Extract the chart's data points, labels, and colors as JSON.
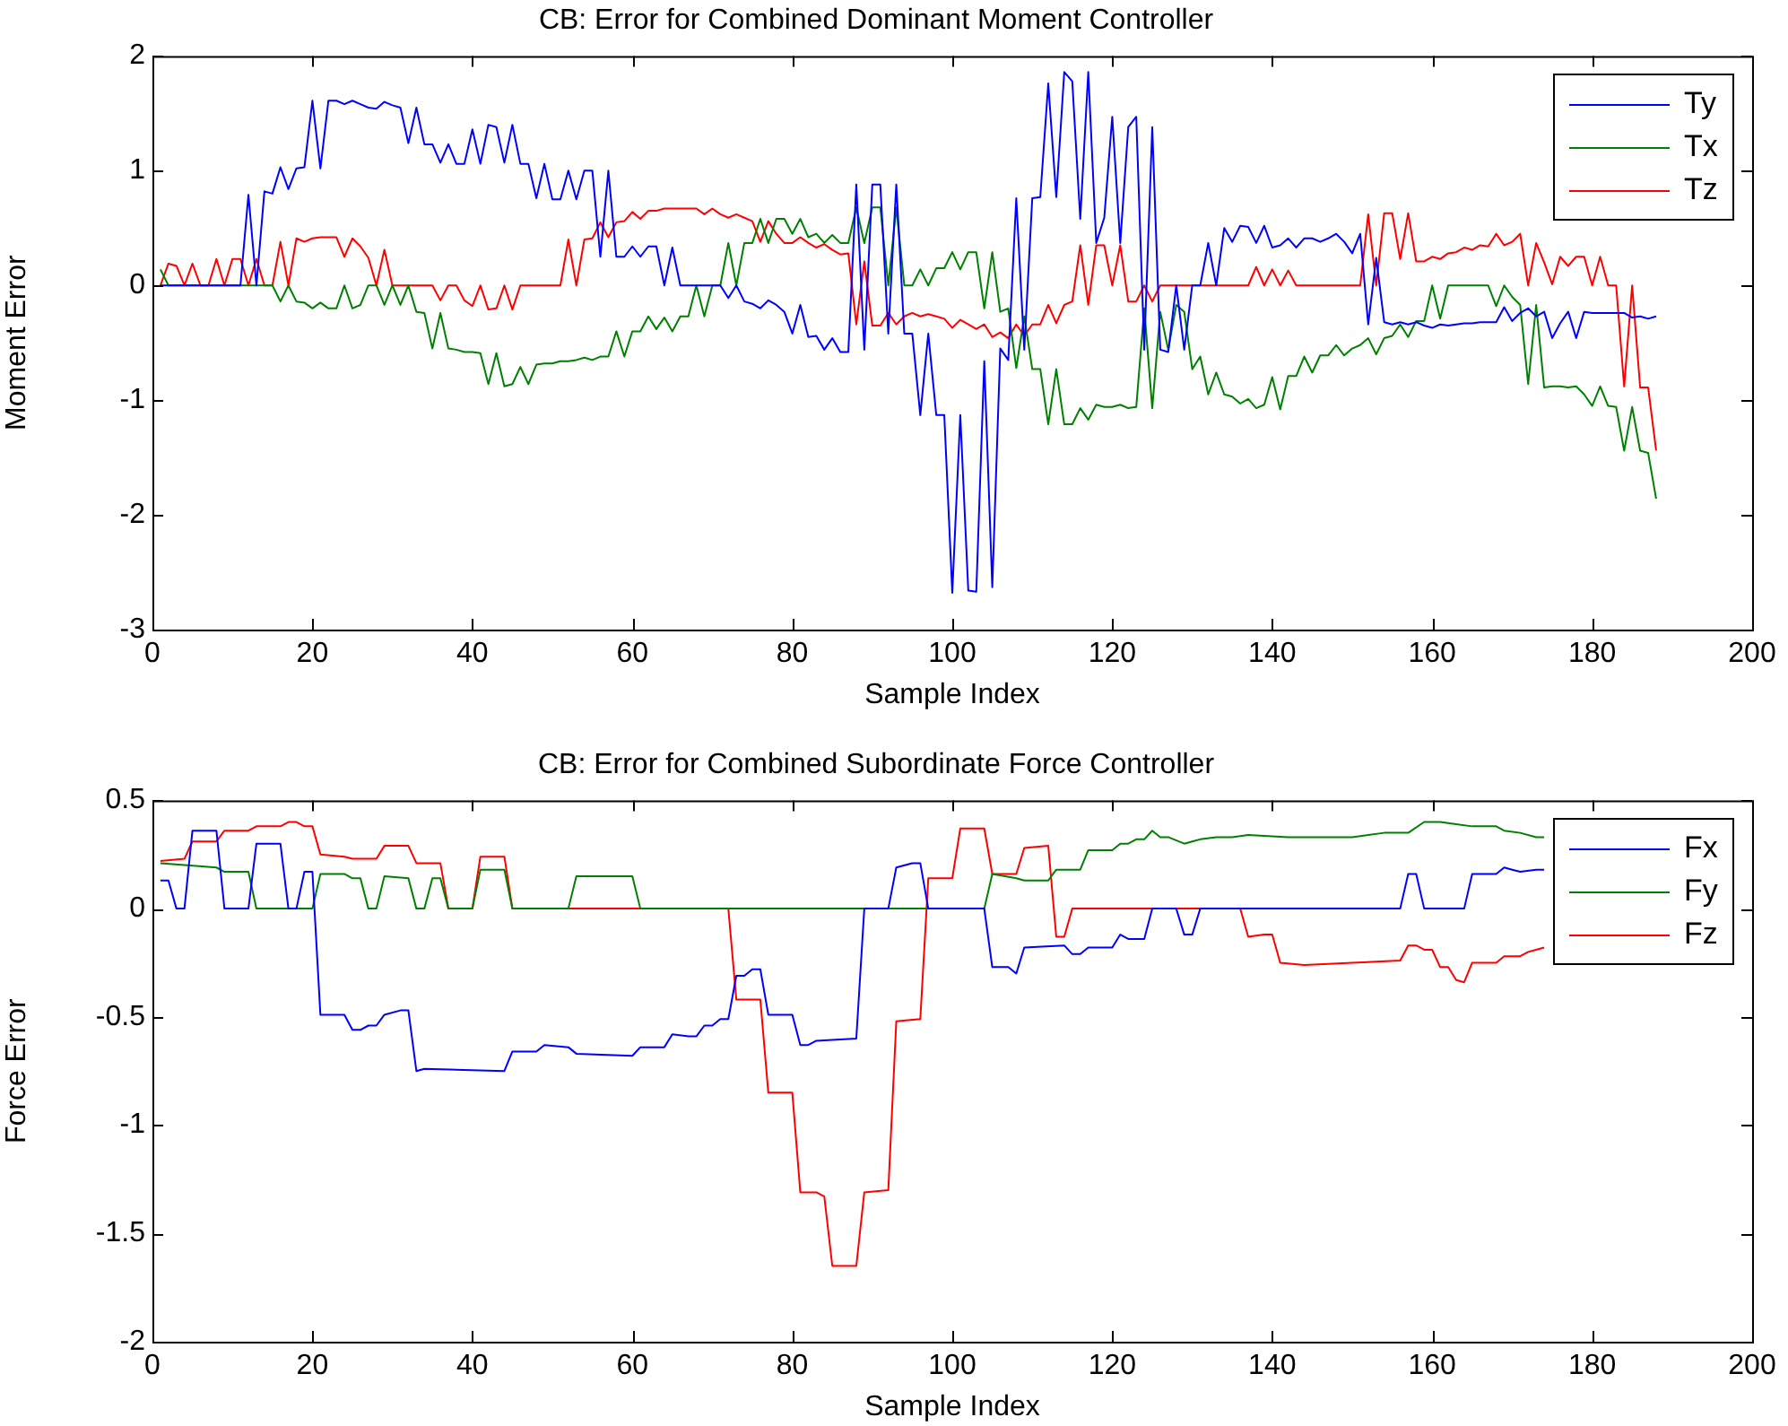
{
  "chart_data": [
    {
      "type": "line",
      "title": "CB: Error for Combined Dominant Moment Controller",
      "xlabel": "Sample Index",
      "ylabel": "Moment Error",
      "xlim": [
        0,
        200
      ],
      "xticks": [
        0,
        20,
        40,
        60,
        80,
        100,
        120,
        140,
        160,
        180,
        200
      ],
      "ylim": [
        -3,
        2
      ],
      "yticks": [
        -3,
        -2,
        -1,
        0,
        1,
        2
      ],
      "grid": false,
      "legend": "top right",
      "x": [
        1,
        2,
        3,
        4,
        5,
        6,
        7,
        8,
        9,
        10,
        11,
        12,
        13,
        14,
        15,
        16,
        17,
        18,
        19,
        20,
        21,
        22,
        23,
        24,
        25,
        26,
        27,
        28,
        29,
        30,
        31,
        32,
        33,
        34,
        35,
        36,
        37,
        38,
        39,
        40,
        41,
        42,
        43,
        44,
        45,
        46,
        47,
        48,
        49,
        50,
        51,
        52,
        53,
        54,
        55,
        56,
        57,
        58,
        59,
        60,
        61,
        62,
        63,
        64,
        65,
        66,
        67,
        68,
        69,
        70,
        71,
        72,
        73,
        74,
        75,
        76,
        77,
        78,
        79,
        80,
        81,
        82,
        83,
        84,
        85,
        86,
        87,
        88,
        89,
        90,
        91,
        92,
        93,
        94,
        95,
        96,
        97,
        98,
        99,
        100,
        101,
        102,
        103,
        104,
        105,
        106,
        107,
        108,
        109,
        110,
        111,
        112,
        113,
        114,
        115,
        116,
        117,
        118,
        119,
        120,
        121,
        122,
        123,
        124,
        125,
        126,
        127,
        128,
        129,
        130,
        131,
        132,
        133,
        134,
        135,
        136,
        137,
        138,
        139,
        140,
        141,
        142,
        143,
        144,
        145,
        146,
        147,
        148,
        149,
        150,
        151,
        152,
        153,
        154,
        155,
        156,
        157,
        158,
        159,
        160,
        161,
        162,
        163,
        164,
        165,
        166,
        167,
        168,
        169,
        170,
        171,
        172,
        173,
        174,
        175,
        176,
        177,
        178,
        179,
        180,
        181,
        182,
        183,
        184,
        185,
        186,
        187,
        188
      ],
      "series": [
        {
          "name": "Ty",
          "color": "#0000ff",
          "values": [
            0,
            0,
            0,
            0,
            0,
            0,
            0,
            0,
            0,
            0,
            0,
            0.79,
            0,
            0.82,
            0.8,
            1.03,
            0.84,
            1.02,
            1.03,
            1.61,
            1.02,
            1.61,
            1.61,
            1.58,
            1.61,
            1.58,
            1.55,
            1.54,
            1.6,
            1.57,
            1.55,
            1.24,
            1.55,
            1.23,
            1.23,
            1.07,
            1.23,
            1.06,
            1.06,
            1.36,
            1.06,
            1.4,
            1.38,
            1.07,
            1.4,
            1.06,
            1.06,
            0.76,
            1.06,
            0.75,
            0.75,
            1,
            0.75,
            1,
            1,
            0.25,
            1,
            0.25,
            0.25,
            0.34,
            0.25,
            0.34,
            0.34,
            0,
            0.33,
            0,
            0,
            0,
            0,
            0,
            0,
            -0.11,
            0,
            -0.14,
            -0.16,
            -0.2,
            -0.13,
            -0.17,
            -0.23,
            -0.42,
            -0.17,
            -0.45,
            -0.44,
            -0.56,
            -0.46,
            -0.58,
            -0.58,
            0.88,
            -0.56,
            0.88,
            0.88,
            -0.42,
            0.88,
            -0.42,
            -0.42,
            -1.13,
            -0.42,
            -1.13,
            -1.13,
            -2.68,
            -1.13,
            -2.66,
            -2.67,
            -0.66,
            -2.63,
            -0.55,
            -0.65,
            0.76,
            -0.56,
            0.76,
            0.77,
            1.76,
            0.77,
            1.86,
            1.78,
            0.58,
            1.86,
            0.37,
            0.59,
            1.47,
            0.37,
            1.38,
            1.47,
            -0.56,
            1.38,
            -0.56,
            -0.58,
            0,
            -0.56,
            0,
            0,
            0.37,
            0,
            0.5,
            0.38,
            0.52,
            0.51,
            0.37,
            0.52,
            0.33,
            0.35,
            0.41,
            0.33,
            0.41,
            0.41,
            0.38,
            0.41,
            0.45,
            0.38,
            0.28,
            0.45,
            -0.34,
            0.24,
            -0.32,
            -0.34,
            -0.32,
            -0.34,
            -0.32,
            -0.35,
            -0.37,
            -0.34,
            -0.35,
            -0.34,
            -0.33,
            -0.33,
            -0.32,
            -0.32,
            -0.32,
            -0.19,
            -0.31,
            -0.24,
            -0.2,
            -0.27,
            -0.23,
            -0.46,
            -0.33,
            -0.23,
            -0.46,
            -0.23,
            -0.24,
            -0.24,
            -0.24,
            -0.24,
            -0.24,
            -0.28,
            -0.27,
            -0.29,
            -0.27
          ]
        },
        {
          "name": "Tx",
          "color": "#008000",
          "values": [
            0.14,
            0,
            0,
            0,
            0,
            0,
            0,
            0,
            0,
            0,
            0,
            0,
            0,
            0,
            0,
            -0.14,
            0,
            -0.14,
            -0.15,
            -0.2,
            -0.15,
            -0.2,
            -0.2,
            0,
            -0.2,
            -0.17,
            0,
            0,
            -0.17,
            0,
            -0.17,
            0,
            -0.23,
            -0.24,
            -0.55,
            -0.24,
            -0.55,
            -0.56,
            -0.58,
            -0.58,
            -0.59,
            -0.86,
            -0.59,
            -0.88,
            -0.86,
            -0.71,
            -0.86,
            -0.69,
            -0.68,
            -0.68,
            -0.66,
            -0.66,
            -0.65,
            -0.63,
            -0.65,
            -0.62,
            -0.62,
            -0.4,
            -0.62,
            -0.4,
            -0.4,
            -0.27,
            -0.38,
            -0.28,
            -0.4,
            -0.27,
            -0.27,
            0,
            -0.27,
            0,
            0,
            0.37,
            0,
            0.37,
            0.37,
            0.58,
            0.37,
            0.58,
            0.58,
            0.45,
            0.58,
            0.42,
            0.45,
            0.37,
            0.44,
            0.37,
            0.37,
            0.68,
            0.37,
            0.68,
            0.68,
            0,
            0.68,
            0,
            0,
            0.14,
            0,
            0.15,
            0.15,
            0.29,
            0.14,
            0.29,
            0.29,
            -0.2,
            0.29,
            -0.23,
            -0.2,
            -0.72,
            -0.27,
            -0.73,
            -0.73,
            -1.21,
            -0.73,
            -1.21,
            -1.21,
            -1.07,
            -1.17,
            -1.04,
            -1.06,
            -1.06,
            -1.04,
            -1.07,
            -1.06,
            -0.2,
            -1.07,
            -0.23,
            -0.56,
            -0.17,
            -0.23,
            -0.73,
            -0.62,
            -0.95,
            -0.76,
            -0.95,
            -0.97,
            -1.03,
            -0.99,
            -1.07,
            -1.04,
            -0.8,
            -1.08,
            -0.79,
            -0.79,
            -0.62,
            -0.76,
            -0.61,
            -0.61,
            -0.52,
            -0.61,
            -0.55,
            -0.52,
            -0.46,
            -0.6,
            -0.46,
            -0.44,
            -0.34,
            -0.45,
            -0.31,
            -0.31,
            0,
            -0.29,
            0,
            0,
            0,
            0,
            0,
            0,
            -0.18,
            0,
            -0.1,
            -0.17,
            -0.86,
            -0.17,
            -0.89,
            -0.88,
            -0.88,
            -0.89,
            -0.88,
            -0.95,
            -1.05,
            -0.88,
            -1.05,
            -1.06,
            -1.44,
            -1.06,
            -1.44,
            -1.46,
            -1.86
          ]
        },
        {
          "name": "Tz",
          "color": "#ff0000",
          "values": [
            0,
            0.19,
            0.17,
            0,
            0.19,
            0,
            0,
            0.23,
            0,
            0.23,
            0.23,
            0,
            0.23,
            0,
            0,
            0.38,
            0,
            0.41,
            0.38,
            0.41,
            0.42,
            0.42,
            0.42,
            0.25,
            0.41,
            0.34,
            0.24,
            0,
            0.31,
            0,
            0,
            0,
            0,
            0,
            0,
            -0.13,
            0,
            0,
            -0.13,
            -0.18,
            0,
            -0.21,
            -0.2,
            0,
            -0.21,
            0,
            0,
            0,
            0,
            0,
            0,
            0.4,
            0,
            0.4,
            0.41,
            0.55,
            0.42,
            0.55,
            0.56,
            0.64,
            0.58,
            0.65,
            0.65,
            0.67,
            0.67,
            0.67,
            0.67,
            0.67,
            0.62,
            0.67,
            0.62,
            0.59,
            0.62,
            0.59,
            0.56,
            0.38,
            0.56,
            0.45,
            0.37,
            0.37,
            0.42,
            0.37,
            0.33,
            0.36,
            0.31,
            0.27,
            0.28,
            -0.34,
            0.21,
            -0.35,
            -0.35,
            -0.24,
            -0.34,
            -0.27,
            -0.24,
            -0.27,
            -0.25,
            -0.27,
            -0.29,
            -0.37,
            -0.3,
            -0.34,
            -0.38,
            -0.34,
            -0.45,
            -0.41,
            -0.46,
            -0.34,
            -0.44,
            -0.34,
            -0.34,
            -0.17,
            -0.33,
            -0.17,
            -0.14,
            0.35,
            -0.17,
            0.35,
            0.35,
            0,
            0.35,
            -0.14,
            -0.14,
            0,
            -0.14,
            0,
            0,
            0,
            0,
            0,
            0,
            0,
            0,
            0,
            0,
            0,
            0,
            0.16,
            0,
            0.14,
            0,
            0.13,
            0,
            0,
            0,
            0,
            0,
            0,
            0,
            0,
            0,
            0.62,
            0,
            0.63,
            0.63,
            0.23,
            0.63,
            0.21,
            0.21,
            0.25,
            0.23,
            0.28,
            0.29,
            0.33,
            0.31,
            0.35,
            0.34,
            0.45,
            0.35,
            0.38,
            0.45,
            0,
            0.37,
            0.2,
            0.01,
            0.25,
            0.17,
            0.25,
            0.25,
            0,
            0.25,
            0,
            0,
            -0.88,
            0,
            -0.89,
            -0.89,
            -1.44
          ]
        }
      ]
    },
    {
      "type": "line",
      "title": "CB: Error for Combined Subordinate Force Controller",
      "xlabel": "Sample Index",
      "ylabel": "Force Error",
      "xlim": [
        0,
        200
      ],
      "xticks": [
        0,
        20,
        40,
        60,
        80,
        100,
        120,
        140,
        160,
        180,
        200
      ],
      "ylim": [
        -2,
        0.5
      ],
      "yticks": [
        -2,
        -1.5,
        -1,
        -0.5,
        0,
        0.5
      ],
      "grid": false,
      "legend": "top right",
      "series": [
        {
          "name": "Fx",
          "color": "#0000ff",
          "x": [
            1,
            2,
            3,
            4,
            5,
            8,
            9,
            12,
            13,
            16,
            17,
            18,
            19,
            20,
            21,
            24,
            25,
            26,
            27,
            28,
            29,
            31,
            32,
            33,
            34,
            44,
            45,
            48,
            49,
            52,
            53,
            60,
            61,
            64,
            65,
            67,
            68,
            69,
            70,
            71,
            72,
            73,
            74,
            75,
            76,
            77,
            80,
            81,
            82,
            83,
            88,
            89,
            92,
            93,
            95,
            96,
            97,
            104,
            105,
            107,
            108,
            109,
            114,
            115,
            116,
            117,
            120,
            121,
            122,
            124,
            125,
            128,
            129,
            130,
            131,
            156,
            157,
            158,
            159,
            164,
            165,
            168,
            169,
            170,
            171,
            173,
            174
          ],
          "values": [
            0.13,
            0.13,
            0,
            0,
            0.36,
            0.36,
            0,
            0,
            0.3,
            0.3,
            0,
            0,
            0.17,
            0.17,
            -0.49,
            -0.49,
            -0.56,
            -0.56,
            -0.54,
            -0.54,
            -0.49,
            -0.47,
            -0.47,
            -0.75,
            -0.74,
            -0.75,
            -0.66,
            -0.66,
            -0.63,
            -0.64,
            -0.67,
            -0.68,
            -0.64,
            -0.64,
            -0.58,
            -0.59,
            -0.59,
            -0.54,
            -0.54,
            -0.51,
            -0.51,
            -0.31,
            -0.31,
            -0.28,
            -0.28,
            -0.49,
            -0.49,
            -0.63,
            -0.63,
            -0.61,
            -0.6,
            0,
            0,
            0.19,
            0.21,
            0.21,
            0,
            0,
            -0.27,
            -0.27,
            -0.3,
            -0.18,
            -0.17,
            -0.21,
            -0.21,
            -0.18,
            -0.18,
            -0.12,
            -0.14,
            -0.14,
            0,
            0,
            -0.12,
            -0.12,
            0,
            0,
            0.16,
            0.16,
            0,
            0,
            0.16,
            0.16,
            0.19,
            0.18,
            0.17,
            0.18,
            0.18
          ]
        },
        {
          "name": "Fy",
          "color": "#008000",
          "x": [
            1,
            8,
            9,
            12,
            13,
            20,
            21,
            24,
            25,
            26,
            27,
            28,
            29,
            32,
            33,
            34,
            35,
            36,
            37,
            40,
            41,
            44,
            45,
            52,
            53,
            60,
            61,
            104,
            105,
            108,
            109,
            112,
            113,
            116,
            117,
            120,
            121,
            122,
            123,
            124,
            125,
            126,
            127,
            129,
            130,
            131,
            133,
            135,
            137,
            142,
            146,
            150,
            154,
            157,
            159,
            161,
            163,
            165,
            168,
            169,
            171,
            173,
            174
          ],
          "values": [
            0.21,
            0.19,
            0.17,
            0.17,
            0,
            0,
            0.16,
            0.16,
            0.14,
            0.14,
            0,
            0,
            0.15,
            0.14,
            0,
            0,
            0.14,
            0.14,
            0,
            0,
            0.18,
            0.18,
            0,
            0,
            0.15,
            0.15,
            0,
            0,
            0.16,
            0.14,
            0.13,
            0.13,
            0.18,
            0.18,
            0.27,
            0.27,
            0.3,
            0.3,
            0.32,
            0.32,
            0.36,
            0.33,
            0.33,
            0.3,
            0.31,
            0.32,
            0.33,
            0.33,
            0.34,
            0.33,
            0.33,
            0.33,
            0.35,
            0.35,
            0.4,
            0.4,
            0.39,
            0.38,
            0.38,
            0.36,
            0.35,
            0.33,
            0.33
          ]
        },
        {
          "name": "Fz",
          "color": "#ff0000",
          "x": [
            1,
            4,
            5,
            8,
            9,
            12,
            13,
            16,
            17,
            18,
            19,
            20,
            21,
            24,
            25,
            28,
            29,
            32,
            33,
            36,
            37,
            40,
            41,
            44,
            45,
            72,
            73,
            76,
            77,
            80,
            81,
            83,
            84,
            85,
            88,
            89,
            92,
            93,
            96,
            97,
            100,
            101,
            104,
            105,
            108,
            109,
            112,
            113,
            114,
            115,
            136,
            137,
            139,
            140,
            141,
            144,
            150,
            156,
            157,
            158,
            159,
            160,
            161,
            162,
            163,
            164,
            165,
            168,
            169,
            171,
            172,
            173,
            174
          ],
          "values": [
            0.22,
            0.23,
            0.31,
            0.31,
            0.36,
            0.36,
            0.38,
            0.38,
            0.4,
            0.4,
            0.38,
            0.38,
            0.25,
            0.24,
            0.23,
            0.23,
            0.29,
            0.29,
            0.21,
            0.21,
            0,
            0,
            0.24,
            0.24,
            0,
            0,
            -0.42,
            -0.42,
            -0.85,
            -0.85,
            -1.31,
            -1.31,
            -1.33,
            -1.65,
            -1.65,
            -1.31,
            -1.3,
            -0.52,
            -0.51,
            0.14,
            0.14,
            0.37,
            0.37,
            0.16,
            0.16,
            0.28,
            0.29,
            -0.13,
            -0.13,
            0,
            0,
            -0.13,
            -0.12,
            -0.12,
            -0.25,
            -0.26,
            -0.25,
            -0.24,
            -0.17,
            -0.17,
            -0.19,
            -0.19,
            -0.27,
            -0.27,
            -0.33,
            -0.34,
            -0.25,
            -0.25,
            -0.22,
            -0.22,
            -0.2,
            -0.19,
            -0.18
          ]
        }
      ]
    }
  ]
}
